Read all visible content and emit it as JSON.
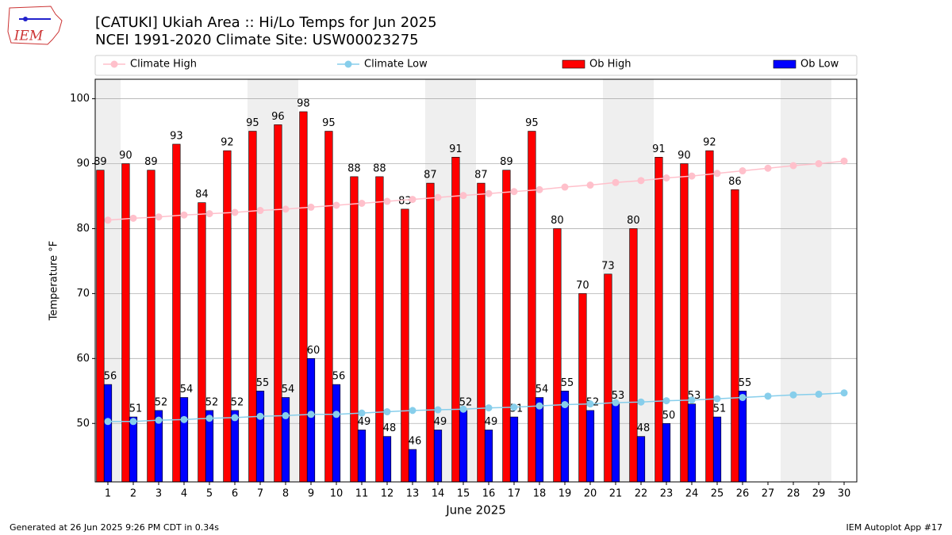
{
  "chart_data": {
    "type": "bar",
    "title": "[CATUKI] Ukiah Area :: Hi/Lo Temps for Jun 2025",
    "subtitle": "NCEI 1991-2020 Climate Site: USW00023275",
    "xlabel": "June 2025",
    "ylabel": "Temperature °F",
    "footer_left": "Generated at 26 Jun 2025 9:26 PM CDT in 0.34s",
    "footer_right": "IEM Autoplot App #17",
    "logo_text": "IEM",
    "x": [
      1,
      2,
      3,
      4,
      5,
      6,
      7,
      8,
      9,
      10,
      11,
      12,
      13,
      14,
      15,
      16,
      17,
      18,
      19,
      20,
      21,
      22,
      23,
      24,
      25,
      26,
      27,
      28,
      29,
      30
    ],
    "xlim": [
      0.5,
      30.5
    ],
    "xticks": [
      1,
      2,
      3,
      4,
      5,
      6,
      7,
      8,
      9,
      10,
      11,
      12,
      13,
      14,
      15,
      16,
      17,
      18,
      19,
      20,
      21,
      22,
      23,
      24,
      25,
      26,
      27,
      28,
      29,
      30
    ],
    "ylim": [
      41,
      103
    ],
    "yticks": [
      50,
      60,
      70,
      80,
      90,
      100
    ],
    "grid": true,
    "legend": "top",
    "shade_days": [
      1,
      7,
      8,
      14,
      15,
      21,
      22,
      28,
      29
    ],
    "series": [
      {
        "name": "Climate High",
        "kind": "line",
        "color": "#ffc0cb",
        "values": [
          81.3,
          81.6,
          81.8,
          82.1,
          82.3,
          82.5,
          82.8,
          83.0,
          83.3,
          83.6,
          83.9,
          84.2,
          84.5,
          84.8,
          85.1,
          85.4,
          85.7,
          86.0,
          86.4,
          86.7,
          87.1,
          87.4,
          87.8,
          88.1,
          88.5,
          88.9,
          89.3,
          89.7,
          90.0,
          90.4
        ]
      },
      {
        "name": "Climate Low",
        "kind": "line",
        "color": "#87ceeb",
        "values": [
          50.3,
          50.3,
          50.5,
          50.6,
          50.8,
          50.9,
          51.1,
          51.2,
          51.4,
          51.4,
          51.6,
          51.8,
          52.0,
          52.1,
          52.2,
          52.4,
          52.5,
          52.7,
          52.9,
          53.0,
          53.2,
          53.3,
          53.5,
          53.6,
          53.8,
          54.0,
          54.2,
          54.4,
          54.5,
          54.7
        ]
      },
      {
        "name": "Ob High",
        "kind": "bar",
        "color": "#ff0000",
        "values": [
          89,
          90,
          89,
          93,
          84,
          92,
          95,
          96,
          98,
          95,
          88,
          88,
          83,
          87,
          91,
          87,
          89,
          95,
          80,
          70,
          73,
          80,
          91,
          90,
          92,
          86,
          null,
          null,
          null,
          null
        ]
      },
      {
        "name": "Ob Low",
        "kind": "bar",
        "color": "#0000ff",
        "values": [
          56,
          51,
          52,
          54,
          52,
          52,
          55,
          54,
          60,
          56,
          49,
          48,
          46,
          49,
          52,
          49,
          51,
          54,
          55,
          52,
          53,
          48,
          50,
          53,
          51,
          55,
          null,
          null,
          null,
          null
        ]
      }
    ]
  }
}
